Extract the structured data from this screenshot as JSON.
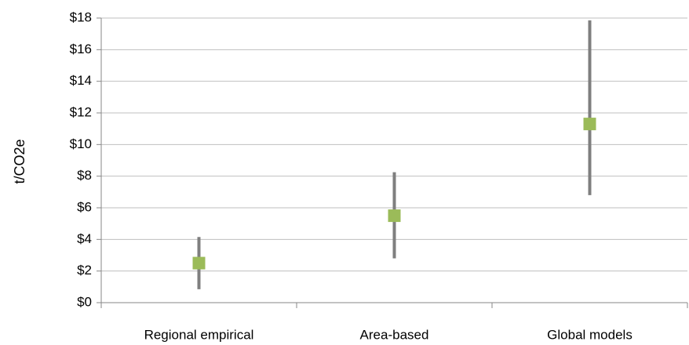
{
  "chart_data": {
    "type": "scatter",
    "title": "",
    "xlabel": "",
    "ylabel": "t/CO2e",
    "categories": [
      "Regional empirical",
      "Area-based",
      "Global models"
    ],
    "series": [
      {
        "values": [
          2.5,
          5.5,
          11.3
        ],
        "low": [
          0.85,
          2.8,
          6.8
        ],
        "high": [
          4.15,
          8.25,
          17.85
        ]
      }
    ],
    "ylim": [
      0,
      18
    ],
    "yticks": [
      0,
      2,
      4,
      6,
      8,
      10,
      12,
      14,
      16,
      18
    ],
    "ytick_labels": [
      "$0",
      "$2",
      "$4",
      "$6",
      "$8",
      "$10",
      "$12",
      "$14",
      "$16",
      "$18"
    ],
    "grid": true,
    "legend": "none",
    "colors": {
      "marker": "#9bbb59",
      "error_bar": "#7f7f7f",
      "grid": "#bfbfbf",
      "axis": "#878787"
    }
  }
}
